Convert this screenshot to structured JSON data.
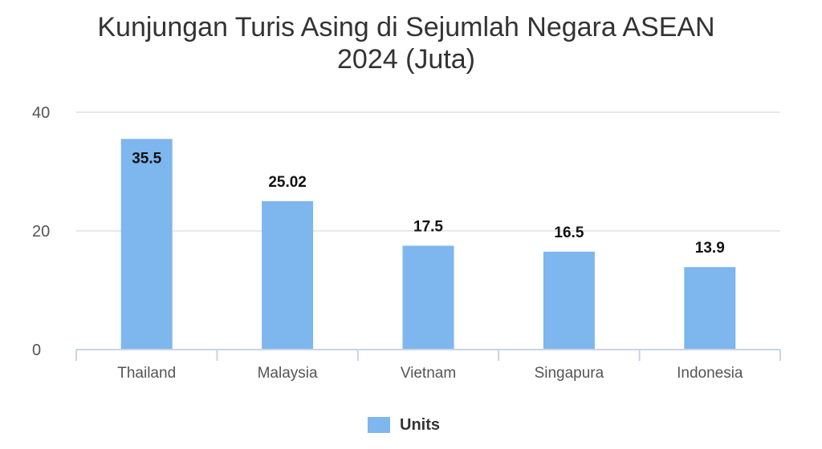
{
  "chart_data": {
    "type": "bar",
    "title_lines": [
      "Kunjungan Turis Asing di Sejumlah Negara ASEAN",
      "2024 (Juta)"
    ],
    "categories": [
      "Thailand",
      "Malaysia",
      "Vietnam",
      "Singapura",
      "Indonesia"
    ],
    "series": [
      {
        "name": "Units",
        "values": [
          35.5,
          25.02,
          17.5,
          16.5,
          13.9
        ],
        "data_labels": [
          "35.5",
          "25.02",
          "17.5",
          "16.5",
          "13.9"
        ],
        "color": "#7eb6ee"
      }
    ],
    "ylim": [
      0,
      40
    ],
    "yticks": [
      0,
      20,
      40
    ],
    "grid": true,
    "legend_position": "bottom",
    "colors": {
      "gridline": "#e0e0e0",
      "axis": "#c8d4e8",
      "tick_text": "#555555",
      "data_label": "#111111"
    }
  }
}
